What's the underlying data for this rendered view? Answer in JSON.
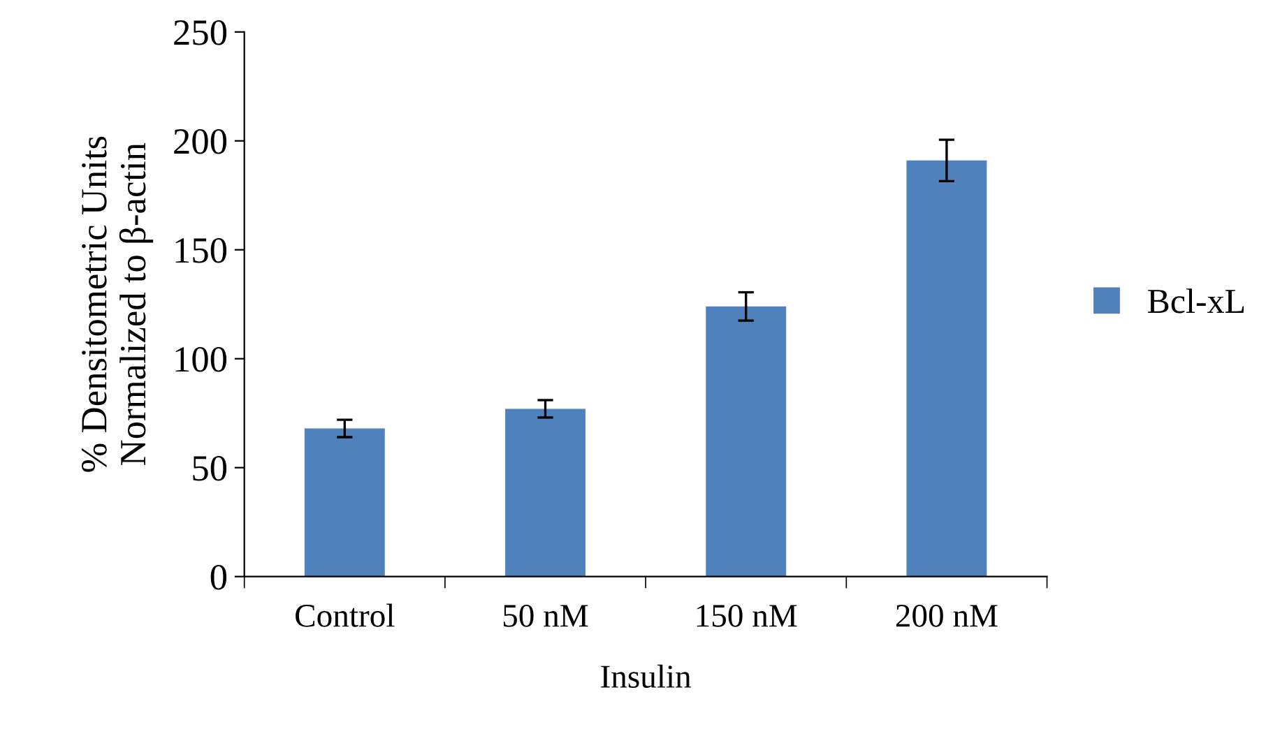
{
  "chart_data": {
    "type": "bar",
    "xlabel": "Insulin",
    "ylabel": "% Densitometric Units\nNormalized to β-actin",
    "categories": [
      "Control",
      "50 nM",
      "150 nM",
      "200 nM"
    ],
    "series": [
      {
        "name": "Bcl-xL",
        "color": "#4f81bd",
        "values": [
          68,
          77,
          124,
          191
        ],
        "errors": [
          4,
          4,
          6.5,
          9.5
        ]
      }
    ],
    "ylim": [
      0,
      250
    ],
    "yticks": [
      0,
      50,
      100,
      150,
      200,
      250
    ],
    "grid": false,
    "legend": "right"
  }
}
